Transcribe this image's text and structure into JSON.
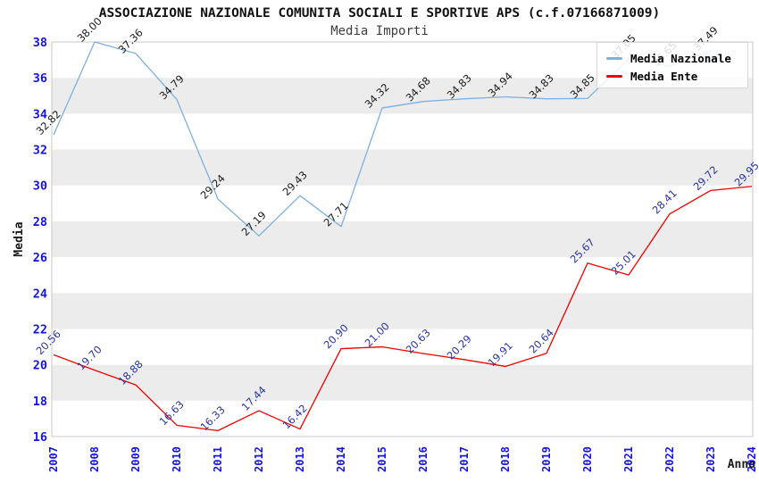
{
  "chart_data": {
    "type": "line",
    "title": "ASSOCIAZIONE NAZIONALE COMUNITA SOCIALI E SPORTIVE APS (c.f.07166871009)",
    "subtitle": "Media Importi",
    "xlabel": "Anno",
    "ylabel": "Media",
    "ylim": [
      16,
      38
    ],
    "ytick_step": 2,
    "yticks": [
      38,
      36,
      34,
      32,
      30,
      28,
      26,
      24,
      22,
      20,
      18,
      16
    ],
    "categories": [
      "2007",
      "2008",
      "2009",
      "2010",
      "2011",
      "2012",
      "2013",
      "2014",
      "2015",
      "2016",
      "2017",
      "2018",
      "2019",
      "2020",
      "2021",
      "2022",
      "2023",
      "2024"
    ],
    "series": [
      {
        "name": "Media Nazionale",
        "line_color": "#7db0e2",
        "label_color": "#1a1a1a",
        "values": [
          32.82,
          38.0,
          37.36,
          34.79,
          29.24,
          27.19,
          29.43,
          27.71,
          34.32,
          34.68,
          34.83,
          34.94,
          34.83,
          34.85,
          37.05,
          36.65,
          37.49,
          null
        ]
      },
      {
        "name": "Media Ente",
        "line_color": "#ee0000",
        "label_color": "#2a35a0",
        "values": [
          20.56,
          19.7,
          18.88,
          16.63,
          16.33,
          17.44,
          16.42,
          20.9,
          21.0,
          20.63,
          20.29,
          19.91,
          20.64,
          25.67,
          25.01,
          28.41,
          29.72,
          29.95
        ]
      }
    ],
    "value_label_decimals": 2,
    "legend_position": "top-right",
    "grid": "alternating-gray-bands",
    "band_color": "#ececec",
    "plot_border_color": "#c9c9c9",
    "tick_label_color": "#1414dd",
    "axis_title_color": "#1a1a1a"
  }
}
